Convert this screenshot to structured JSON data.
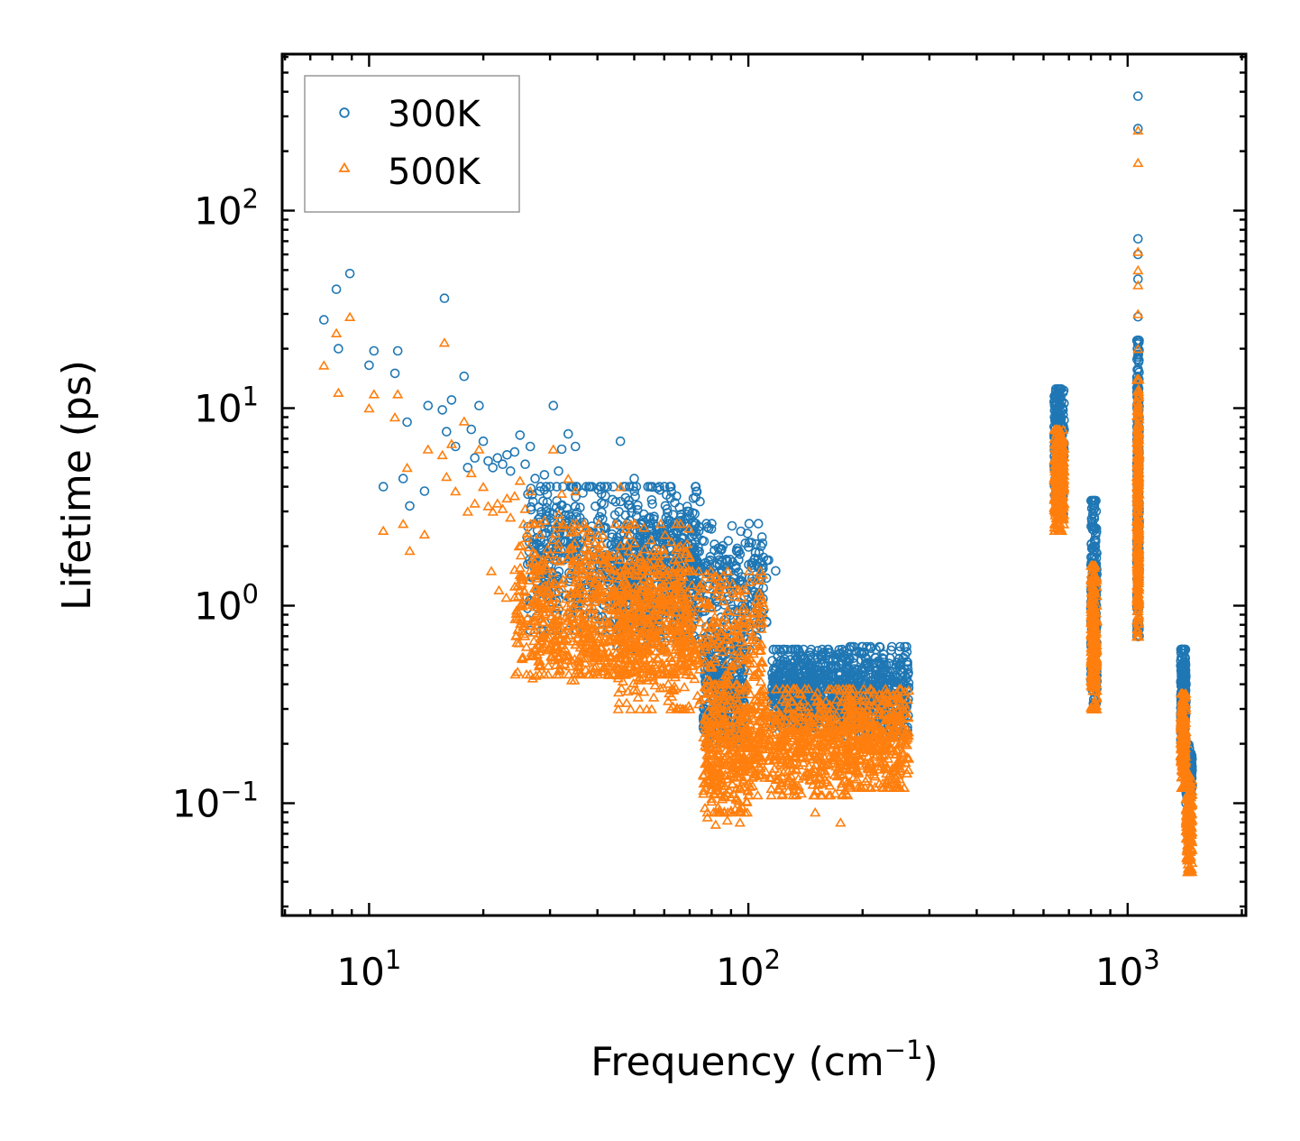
{
  "chart_data": {
    "type": "scatter",
    "title": "",
    "xlabel": "Frequency (cm",
    "xlabel_sup": "−1",
    "xlabel_close": ")",
    "ylabel": "Lifetime (ps)",
    "xscale": "log",
    "yscale": "log",
    "xlim": [
      5.9,
      2050
    ],
    "ylim": [
      0.027,
      620
    ],
    "xticks": [
      {
        "value": 10,
        "base": "10",
        "exp": "1"
      },
      {
        "value": 100,
        "base": "10",
        "exp": "2"
      },
      {
        "value": 1000,
        "base": "10",
        "exp": "3"
      }
    ],
    "yticks": [
      {
        "value": 0.1,
        "base": "10",
        "exp": "−1"
      },
      {
        "value": 1,
        "base": "10",
        "exp": "0"
      },
      {
        "value": 10,
        "base": "10",
        "exp": "1"
      },
      {
        "value": 100,
        "base": "10",
        "exp": "2"
      }
    ],
    "legend": {
      "position": "top-left"
    },
    "series": [
      {
        "name": "300K",
        "marker": "circle",
        "color": "#1f77b4",
        "points": [
          [
            7.6,
            28
          ],
          [
            8.2,
            40
          ],
          [
            8.3,
            20
          ],
          [
            8.9,
            48
          ],
          [
            10.0,
            16.5
          ],
          [
            10.3,
            19.5
          ],
          [
            10.9,
            4.0
          ],
          [
            11.7,
            15
          ],
          [
            11.9,
            19.5
          ],
          [
            12.3,
            4.4
          ],
          [
            12.6,
            8.5
          ],
          [
            12.8,
            3.2
          ],
          [
            14.0,
            3.8
          ],
          [
            14.3,
            10.3
          ],
          [
            15.6,
            9.8
          ],
          [
            15.8,
            36
          ],
          [
            16.0,
            7.6
          ],
          [
            16.5,
            11
          ],
          [
            16.9,
            6.4
          ],
          [
            17.8,
            14.5
          ],
          [
            18.2,
            5.0
          ],
          [
            18.6,
            7.8
          ],
          [
            19.0,
            5.6
          ],
          [
            19.5,
            10.3
          ],
          [
            20.0,
            6.8
          ],
          [
            20.6,
            5.4
          ],
          [
            21.2,
            5.0
          ],
          [
            21.8,
            5.6
          ],
          [
            22.5,
            5.2
          ],
          [
            23.1,
            5.8
          ],
          [
            23.6,
            4.8
          ],
          [
            24.2,
            6.0
          ],
          [
            25.0,
            7.3
          ],
          [
            25.8,
            5.2
          ],
          [
            26.6,
            6.4
          ],
          [
            27.4,
            4.4
          ],
          [
            28.2,
            3.8
          ],
          [
            29.0,
            4.6
          ],
          [
            30.6,
            10.3
          ],
          [
            31.6,
            4.8
          ],
          [
            32.2,
            6.2
          ],
          [
            33.5,
            7.4
          ],
          [
            35.0,
            6.4
          ],
          [
            38.0,
            4.0
          ],
          [
            42.0,
            3.6
          ],
          [
            46.0,
            6.8
          ],
          [
            50.0,
            4.4
          ],
          [
            55.0,
            2.8
          ],
          [
            60.0,
            2.4
          ],
          [
            66.0,
            2.6
          ],
          [
            72.0,
            2.3
          ],
          [
            78.0,
            1.6
          ],
          [
            84.0,
            1.3
          ],
          [
            90.0,
            1.2
          ],
          [
            96.0,
            1.4
          ],
          [
            102.0,
            1.6
          ],
          [
            108.0,
            2.0
          ],
          [
            113.0,
            1.7
          ],
          [
            118.0,
            1.5
          ],
          [
            122.0,
            0.58
          ],
          [
            128.0,
            0.45
          ],
          [
            136.0,
            0.5
          ],
          [
            145.0,
            0.58
          ],
          [
            155.0,
            0.56
          ],
          [
            165.0,
            0.48
          ],
          [
            175.0,
            0.55
          ],
          [
            185.0,
            0.32
          ],
          [
            195.0,
            0.34
          ],
          [
            205.0,
            0.4
          ],
          [
            220.0,
            0.36
          ],
          [
            235.0,
            0.42
          ],
          [
            250.0,
            0.54
          ],
          [
            258.0,
            0.62
          ],
          [
            1065,
            380
          ],
          [
            1065,
            260
          ],
          [
            1065,
            72
          ],
          [
            1065,
            60
          ],
          [
            1065,
            45
          ],
          [
            1065,
            29
          ],
          [
            1065,
            22
          ]
        ],
        "clusters": [
          {
            "x_min": 26,
            "x_max": 75,
            "y_min": 0.75,
            "y_max": 4.0,
            "n": 700
          },
          {
            "x_min": 45,
            "x_max": 112,
            "y_min": 0.6,
            "y_max": 2.6,
            "n": 500
          },
          {
            "x_min": 76,
            "x_max": 98,
            "y_min": 0.2,
            "y_max": 0.7,
            "n": 300
          },
          {
            "x_min": 115,
            "x_max": 185,
            "y_min": 0.24,
            "y_max": 0.6,
            "n": 550
          },
          {
            "x_min": 180,
            "x_max": 265,
            "y_min": 0.22,
            "y_max": 0.62,
            "n": 400
          },
          {
            "x_min": 640,
            "x_max": 680,
            "y_min": 2.9,
            "y_max": 12.5,
            "n": 300
          },
          {
            "x_min": 800,
            "x_max": 830,
            "y_min": 0.32,
            "y_max": 3.4,
            "n": 250
          },
          {
            "x_min": 1058,
            "x_max": 1072,
            "y_min": 0.7,
            "y_max": 22,
            "n": 300
          },
          {
            "x_min": 1380,
            "x_max": 1425,
            "y_min": 0.2,
            "y_max": 0.6,
            "n": 200
          },
          {
            "x_min": 1425,
            "x_max": 1480,
            "y_min": 0.1,
            "y_max": 0.2,
            "n": 120
          }
        ]
      },
      {
        "name": "500K",
        "marker": "triangle",
        "color": "#ff7f0e",
        "points": [
          [
            7.6,
            16.5
          ],
          [
            8.2,
            24
          ],
          [
            8.3,
            12
          ],
          [
            8.9,
            29
          ],
          [
            10.0,
            10.0
          ],
          [
            10.3,
            11.8
          ],
          [
            10.9,
            2.4
          ],
          [
            11.7,
            9.0
          ],
          [
            11.9,
            11.8
          ],
          [
            12.3,
            2.6
          ],
          [
            12.6,
            5.0
          ],
          [
            12.8,
            1.9
          ],
          [
            14.0,
            2.3
          ],
          [
            14.3,
            6.2
          ],
          [
            15.6,
            5.8
          ],
          [
            15.8,
            21.5
          ],
          [
            16.0,
            4.5
          ],
          [
            16.5,
            6.6
          ],
          [
            16.9,
            3.8
          ],
          [
            17.8,
            8.6
          ],
          [
            18.2,
            3.0
          ],
          [
            18.6,
            4.7
          ],
          [
            19.0,
            3.3
          ],
          [
            19.5,
            6.2
          ],
          [
            20.0,
            4.0
          ],
          [
            20.6,
            3.2
          ],
          [
            21.2,
            3.0
          ],
          [
            21.8,
            3.3
          ],
          [
            22.5,
            3.1
          ],
          [
            23.1,
            3.5
          ],
          [
            23.6,
            2.8
          ],
          [
            24.2,
            3.6
          ],
          [
            25.0,
            4.3
          ],
          [
            25.8,
            3.1
          ],
          [
            26.6,
            3.8
          ],
          [
            27.4,
            2.6
          ],
          [
            28.2,
            2.3
          ],
          [
            29.0,
            2.7
          ],
          [
            30.6,
            6.2
          ],
          [
            31.6,
            2.9
          ],
          [
            32.2,
            3.7
          ],
          [
            33.5,
            4.4
          ],
          [
            35.0,
            3.8
          ],
          [
            38.0,
            2.4
          ],
          [
            46.0,
            4.0
          ],
          [
            50.0,
            2.6
          ],
          [
            21.0,
            1.5
          ],
          [
            22.0,
            1.2
          ],
          [
            23.0,
            1.1
          ],
          [
            25.0,
            1.0
          ],
          [
            26.0,
            0.62
          ],
          [
            27.0,
            0.43
          ],
          [
            78.0,
            0.085
          ],
          [
            82.0,
            0.078
          ],
          [
            88.0,
            0.082
          ],
          [
            95.0,
            0.08
          ],
          [
            150.0,
            0.09
          ],
          [
            175.0,
            0.08
          ],
          [
            1065,
            255
          ],
          [
            1065,
            175
          ],
          [
            1065,
            62
          ],
          [
            1065,
            50
          ],
          [
            1065,
            42
          ],
          [
            1065,
            30
          ],
          [
            1065,
            20
          ]
        ],
        "clusters": [
          {
            "x_min": 24,
            "x_max": 70,
            "y_min": 0.45,
            "y_max": 2.6,
            "n": 700
          },
          {
            "x_min": 27,
            "x_max": 55,
            "y_min": 0.42,
            "y_max": 0.9,
            "n": 160
          },
          {
            "x_min": 45,
            "x_max": 110,
            "y_min": 0.3,
            "y_max": 1.5,
            "n": 500
          },
          {
            "x_min": 76,
            "x_max": 100,
            "y_min": 0.09,
            "y_max": 0.4,
            "n": 350
          },
          {
            "x_min": 100,
            "x_max": 185,
            "y_min": 0.11,
            "y_max": 0.38,
            "n": 550
          },
          {
            "x_min": 180,
            "x_max": 265,
            "y_min": 0.12,
            "y_max": 0.38,
            "n": 400
          },
          {
            "x_min": 640,
            "x_max": 680,
            "y_min": 2.4,
            "y_max": 7.8,
            "n": 300
          },
          {
            "x_min": 800,
            "x_max": 830,
            "y_min": 0.3,
            "y_max": 1.6,
            "n": 250
          },
          {
            "x_min": 1058,
            "x_max": 1072,
            "y_min": 0.7,
            "y_max": 14,
            "n": 300
          },
          {
            "x_min": 1380,
            "x_max": 1425,
            "y_min": 0.12,
            "y_max": 0.36,
            "n": 200
          },
          {
            "x_min": 1425,
            "x_max": 1480,
            "y_min": 0.045,
            "y_max": 0.14,
            "n": 160
          }
        ]
      }
    ]
  }
}
